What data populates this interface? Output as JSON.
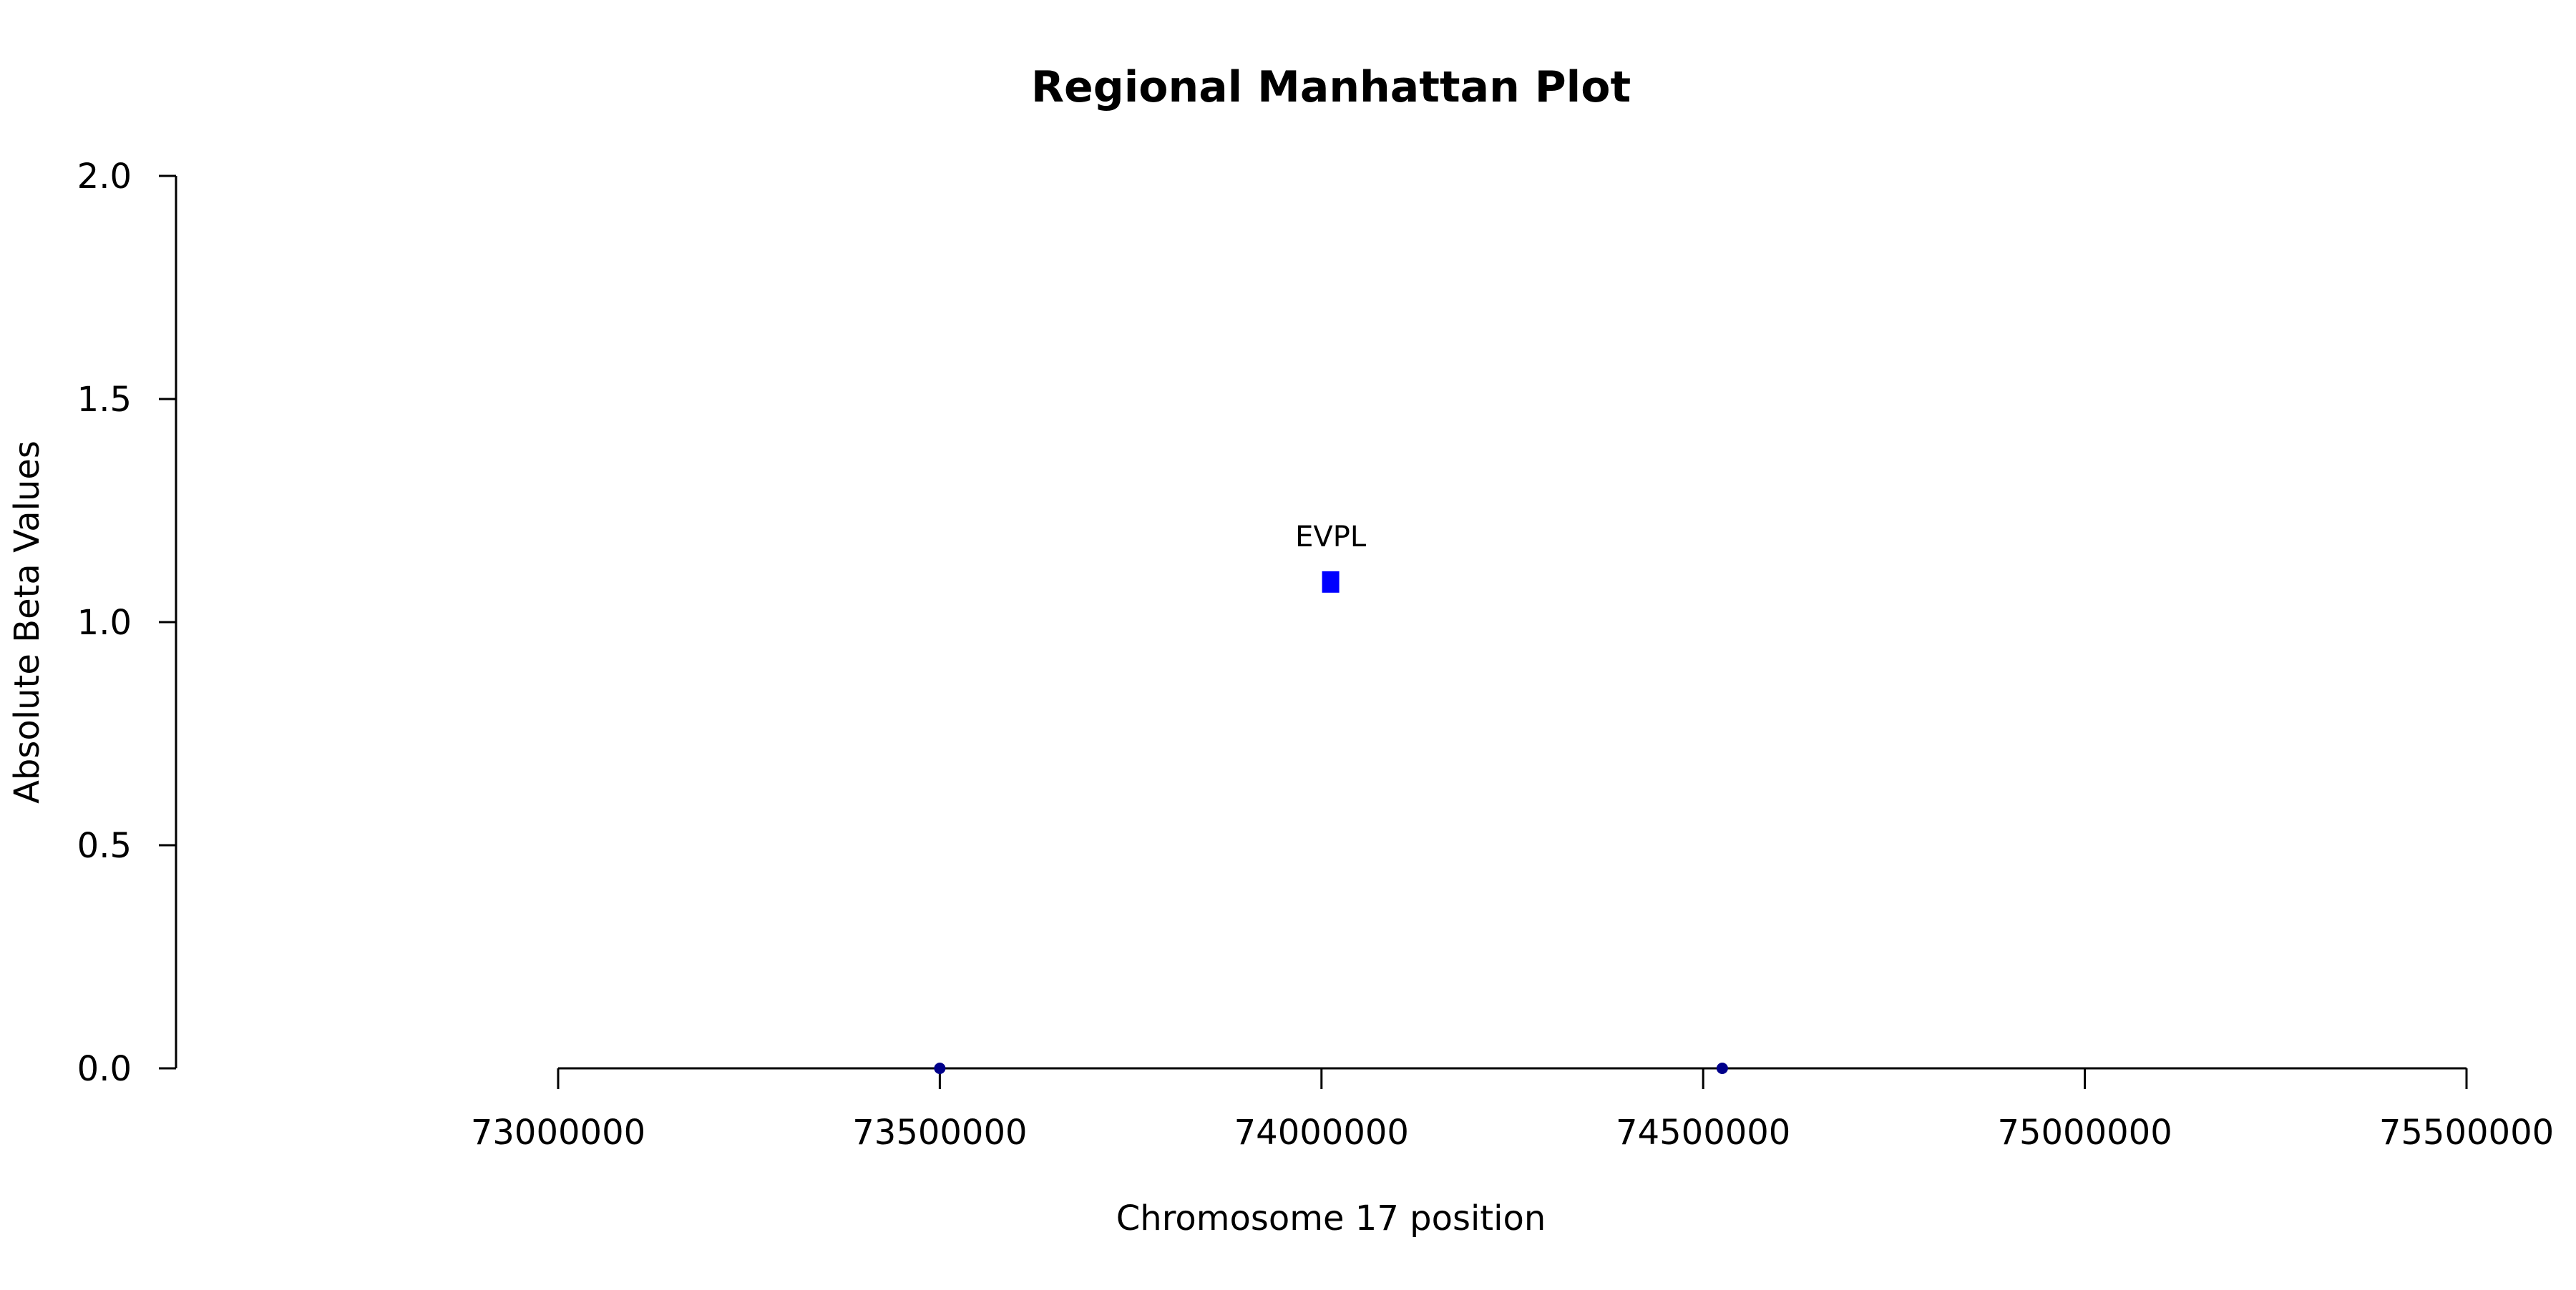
{
  "chart_data": {
    "type": "scatter",
    "title": "Regional Manhattan Plot",
    "xlabel": "Chromosome 17 position",
    "ylabel": "Absolute Beta Values",
    "xlim": [
      73000000,
      75500000
    ],
    "ylim": [
      0,
      2
    ],
    "x_ticks": [
      73000000,
      73500000,
      74000000,
      74500000,
      75000000,
      75500000
    ],
    "x_tick_labels": [
      "73000000",
      "73500000",
      "74000000",
      "74500000",
      "75000000",
      "75500000"
    ],
    "y_ticks": [
      0,
      0.5,
      1,
      1.5,
      2
    ],
    "y_tick_labels": [
      "0.0",
      "0.5",
      "1.0",
      "1.5",
      "2.0"
    ],
    "grid": false,
    "points": [
      {
        "x": 73500000,
        "y": 0.0,
        "shape": "circle",
        "color": "#00008b",
        "label": ""
      },
      {
        "x": 74012000,
        "y": 1.09,
        "shape": "square",
        "color": "#0000ff",
        "label": "EVPL"
      },
      {
        "x": 74525000,
        "y": 0.0,
        "shape": "circle",
        "color": "#00008b",
        "label": ""
      }
    ]
  }
}
